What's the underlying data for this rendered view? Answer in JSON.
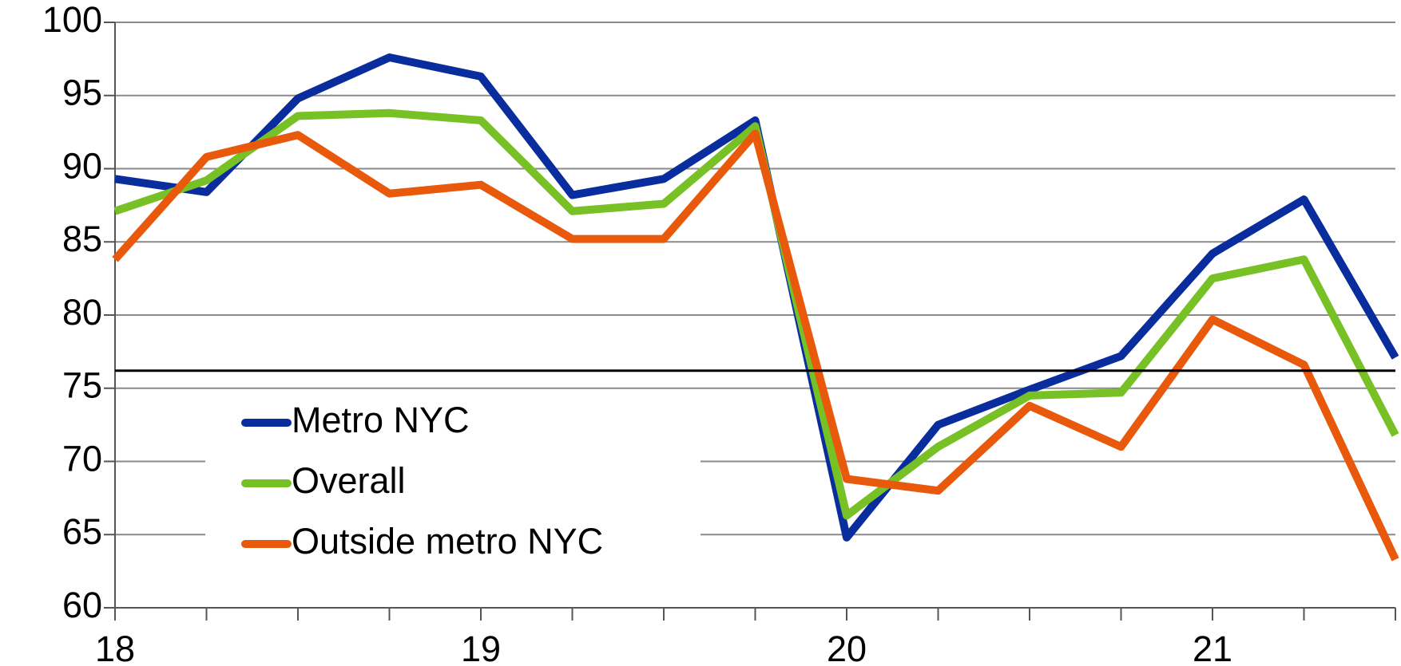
{
  "chart_data": {
    "type": "line",
    "categories": [
      "18",
      null,
      null,
      null,
      "19",
      null,
      null,
      null,
      "20",
      null,
      null,
      null,
      "21",
      null,
      null
    ],
    "series": [
      {
        "name": "Metro NYC",
        "color": "#0a2d9e",
        "values": [
          89.3,
          88.4,
          94.8,
          97.6,
          96.3,
          88.2,
          89.3,
          93.3,
          64.8,
          72.5,
          74.9,
          77.2,
          84.2,
          87.9,
          77.1
        ]
      },
      {
        "name": "Overall",
        "color": "#77c025",
        "values": [
          87.1,
          89.2,
          93.6,
          93.8,
          93.3,
          87.1,
          87.6,
          92.9,
          66.3,
          71.0,
          74.5,
          74.7,
          82.5,
          83.8,
          71.8
        ]
      },
      {
        "name": "Outside metro NYC",
        "color": "#e8590c",
        "values": [
          83.8,
          90.8,
          92.3,
          88.3,
          88.9,
          85.2,
          85.2,
          92.4,
          68.8,
          68.0,
          73.8,
          71.0,
          79.7,
          76.6,
          63.3
        ]
      }
    ],
    "reference_line": 76.2,
    "ylim": [
      60,
      100
    ],
    "yticks": [
      60,
      65,
      70,
      75,
      80,
      85,
      90,
      95,
      100
    ],
    "grid": true,
    "legend": "lower left"
  }
}
